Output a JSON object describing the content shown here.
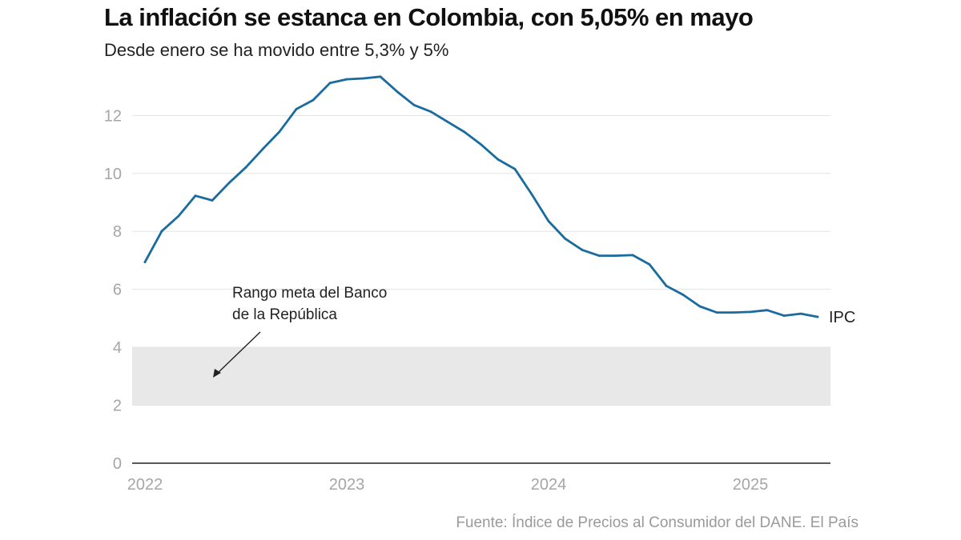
{
  "chart_data": {
    "type": "line",
    "title": "La inflación se estanca en Colombia, con 5,05% en mayo",
    "subtitle": "Desde enero se ha movido entre 5,3% y 5%",
    "source": "Fuente: Índice de Precios al Consumidor del DANE. El País",
    "ylim": [
      0,
      13.5
    ],
    "y_ticks": [
      0,
      2,
      4,
      6,
      8,
      10,
      12
    ],
    "x_ticks": [
      "2022",
      "2023",
      "2024",
      "2025"
    ],
    "grid": true,
    "band": {
      "from": 2,
      "to": 4,
      "color": "#e8e8e8"
    },
    "annotation": {
      "lines": [
        "Rango meta del Banco",
        "de la República"
      ]
    },
    "series": [
      {
        "name": "IPC",
        "color": "#1a6b9e",
        "x": [
          "2022-01",
          "2022-02",
          "2022-03",
          "2022-04",
          "2022-05",
          "2022-06",
          "2022-07",
          "2022-08",
          "2022-09",
          "2022-10",
          "2022-11",
          "2022-12",
          "2023-01",
          "2023-02",
          "2023-03",
          "2023-04",
          "2023-05",
          "2023-06",
          "2023-07",
          "2023-08",
          "2023-09",
          "2023-10",
          "2023-11",
          "2023-12",
          "2024-01",
          "2024-02",
          "2024-03",
          "2024-04",
          "2024-05",
          "2024-06",
          "2024-07",
          "2024-08",
          "2024-09",
          "2024-10",
          "2024-11",
          "2024-12",
          "2025-01",
          "2025-02",
          "2025-03",
          "2025-04",
          "2025-05"
        ],
        "values": [
          6.94,
          8.01,
          8.53,
          9.23,
          9.07,
          9.67,
          10.21,
          10.84,
          11.44,
          12.22,
          12.53,
          13.12,
          13.25,
          13.28,
          13.34,
          12.82,
          12.36,
          12.13,
          11.78,
          11.43,
          10.99,
          10.48,
          10.15,
          9.28,
          8.35,
          7.74,
          7.36,
          7.16,
          7.16,
          7.18,
          6.86,
          6.12,
          5.81,
          5.41,
          5.2,
          5.2,
          5.22,
          5.28,
          5.09,
          5.16,
          5.05
        ]
      }
    ]
  }
}
